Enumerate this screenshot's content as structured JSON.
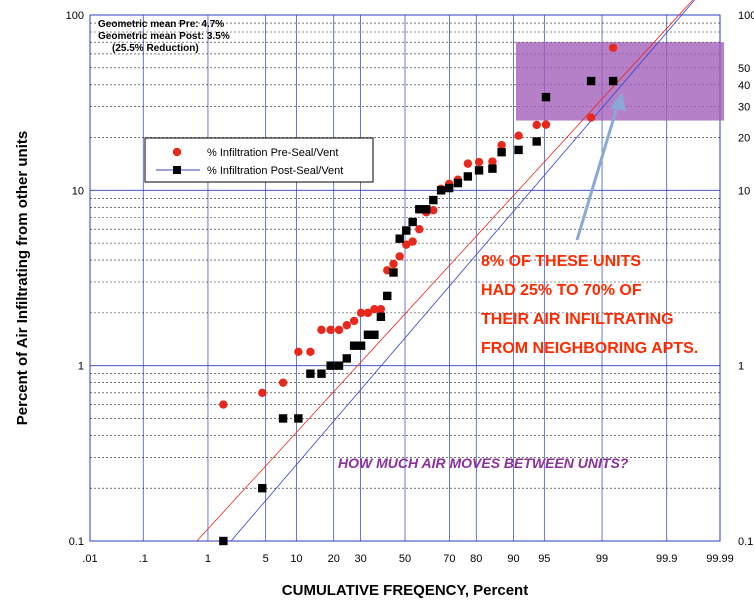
{
  "chart_data": {
    "type": "scatter",
    "x_scale": "probability",
    "y_scale": "log",
    "xlabel": "CUMULATIVE FREQENCY, Percent",
    "ylabel": "Percent of Air Infiltrating from other units",
    "xlim": [
      0.01,
      99.99
    ],
    "ylim": [
      0.1,
      100
    ],
    "x_ticks": [
      "0.01",
      "0.1",
      "1",
      "5",
      "10",
      "20",
      "30",
      "50",
      "70",
      "80",
      "90",
      "95",
      "99",
      "99.9",
      "99.99"
    ],
    "x_tick_labels": [
      ".01",
      ".1",
      "1",
      "5",
      "10",
      "20",
      "30",
      "50",
      "70",
      "80",
      "90",
      "95",
      "99",
      "99.9",
      "99.99"
    ],
    "y_ticks_left": [
      "100",
      "10",
      "1",
      "0.1"
    ],
    "y_ticks_right": [
      "100",
      "50",
      "40",
      "30",
      "20",
      "10",
      "1",
      "0.1"
    ],
    "grid": true,
    "legend_position": "upper-left",
    "stats_text": [
      "Geometric mean Pre:  4.7%",
      "Geometric mean Post: 3.5%",
      "(25.5% Reduction)"
    ],
    "series": [
      {
        "name": "% Infiltration Pre-Seal/Vent",
        "color": "#e8281c",
        "marker": "circle",
        "fit_line": {
          "x": [
            0.7,
            99.99
          ],
          "y": [
            0.1,
            180
          ]
        },
        "points": [
          [
            1.6,
            0.6
          ],
          [
            4.6,
            0.7
          ],
          [
            7.5,
            0.8
          ],
          [
            10.4,
            1.2
          ],
          [
            13.2,
            1.2
          ],
          [
            16.2,
            1.6
          ],
          [
            19.0,
            1.6
          ],
          [
            21.8,
            1.6
          ],
          [
            24.6,
            1.7
          ],
          [
            27.4,
            1.8
          ],
          [
            30.2,
            2.0
          ],
          [
            33.1,
            2.0
          ],
          [
            35.9,
            2.1
          ],
          [
            38.8,
            2.1
          ],
          [
            41.7,
            3.5
          ],
          [
            44.6,
            3.8
          ],
          [
            47.5,
            4.2
          ],
          [
            50.6,
            4.9
          ],
          [
            53.6,
            5.1
          ],
          [
            56.7,
            6.0
          ],
          [
            59.9,
            7.5
          ],
          [
            63.1,
            7.7
          ],
          [
            66.5,
            10.2
          ],
          [
            69.9,
            10.9
          ],
          [
            73.4,
            11.5
          ],
          [
            77.1,
            14.2
          ],
          [
            80.9,
            14.5
          ],
          [
            84.9,
            14.6
          ],
          [
            87.3,
            18.1
          ],
          [
            91.0,
            20.5
          ],
          [
            94.0,
            23.6
          ],
          [
            95.2,
            23.7
          ],
          [
            98.6,
            26.0
          ],
          [
            99.3,
            65.0
          ]
        ]
      },
      {
        "name": "% Infiltration Post-Seal/Vent",
        "color": "#000000",
        "line_color": "#3344cc",
        "marker": "square",
        "fit_line": {
          "x": [
            2.0,
            99.99
          ],
          "y": [
            0.1,
            180
          ]
        },
        "points": [
          [
            1.6,
            0.1
          ],
          [
            4.6,
            0.2
          ],
          [
            7.5,
            0.5
          ],
          [
            10.4,
            0.5
          ],
          [
            13.2,
            0.9
          ],
          [
            16.2,
            0.9
          ],
          [
            19.0,
            1.0
          ],
          [
            21.8,
            1.0
          ],
          [
            24.6,
            1.1
          ],
          [
            27.4,
            1.3
          ],
          [
            30.2,
            1.3
          ],
          [
            33.1,
            1.5
          ],
          [
            35.9,
            1.5
          ],
          [
            38.8,
            1.9
          ],
          [
            41.7,
            2.5
          ],
          [
            44.6,
            3.4
          ],
          [
            47.5,
            5.3
          ],
          [
            50.6,
            5.9
          ],
          [
            53.6,
            6.6
          ],
          [
            56.7,
            7.8
          ],
          [
            59.9,
            7.8
          ],
          [
            63.1,
            8.8
          ],
          [
            66.5,
            10.0
          ],
          [
            69.9,
            10.3
          ],
          [
            73.4,
            11.0
          ],
          [
            77.1,
            12.0
          ],
          [
            80.9,
            13.0
          ],
          [
            84.9,
            13.3
          ],
          [
            87.3,
            16.5
          ],
          [
            91.0,
            17.0
          ],
          [
            94.0,
            19.0
          ],
          [
            95.2,
            34.0
          ],
          [
            98.6,
            42.0
          ],
          [
            99.3,
            42.0
          ]
        ]
      }
    ],
    "highlight_band": {
      "x_from": 90.5,
      "x_to": 99.99,
      "y_from": 25,
      "y_to": 70,
      "color": "#a05cb8"
    },
    "annotations": {
      "callout_lines": [
        "8% OF THESE UNITS",
        "HAD 25% TO 70% OF",
        "THEIR AIR INFILTRATING",
        "FROM NEIGHBORING APTS."
      ],
      "question": "HOW MUCH AIR MOVES BETWEEN UNITS?"
    }
  }
}
